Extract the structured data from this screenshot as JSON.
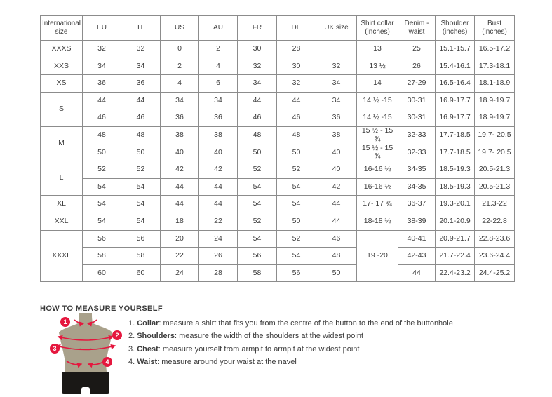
{
  "colors": {
    "accent_red": "#e5173e",
    "torso": "#a9a18b",
    "pants": "#1a1816",
    "table_border": "#8c8c8c",
    "text": "#3d3d3d"
  },
  "table": {
    "headers": [
      "International size",
      "EU",
      "IT",
      "US",
      "AU",
      "FR",
      "DE",
      "UK size",
      "Shirt collar (inches)",
      "Denim - waist",
      "Shoulder (inches)",
      "Bust (inches)"
    ],
    "rows": [
      [
        {
          "t": "XXXS"
        },
        {
          "t": "32"
        },
        {
          "t": "32"
        },
        {
          "t": "0"
        },
        {
          "t": "2"
        },
        {
          "t": "30"
        },
        {
          "t": "28"
        },
        {
          "t": ""
        },
        {
          "t": "13"
        },
        {
          "t": "25"
        },
        {
          "t": "15.1-15.7"
        },
        {
          "t": "16.5-17.2"
        }
      ],
      [
        {
          "t": "XXS"
        },
        {
          "t": "34"
        },
        {
          "t": "34"
        },
        {
          "t": "2"
        },
        {
          "t": "4"
        },
        {
          "t": "32"
        },
        {
          "t": "30"
        },
        {
          "t": "32"
        },
        {
          "t": "13 ½"
        },
        {
          "t": "26"
        },
        {
          "t": "15.4-16.1"
        },
        {
          "t": "17.3-18.1"
        }
      ],
      [
        {
          "t": "XS"
        },
        {
          "t": "36"
        },
        {
          "t": "36"
        },
        {
          "t": "4"
        },
        {
          "t": "6"
        },
        {
          "t": "34"
        },
        {
          "t": "32"
        },
        {
          "t": "34"
        },
        {
          "t": "14"
        },
        {
          "t": "27-29"
        },
        {
          "t": "16.5-16.4"
        },
        {
          "t": "18.1-18.9"
        }
      ],
      [
        {
          "t": "S",
          "rs": 2
        },
        {
          "t": "44"
        },
        {
          "t": "44"
        },
        {
          "t": "34"
        },
        {
          "t": "34"
        },
        {
          "t": "44"
        },
        {
          "t": "44"
        },
        {
          "t": "34"
        },
        {
          "t": "14 ½ -15"
        },
        {
          "t": "30-31"
        },
        {
          "t": "16.9-17.7"
        },
        {
          "t": "18.9-19.7"
        }
      ],
      [
        {
          "t": "46"
        },
        {
          "t": "46"
        },
        {
          "t": "36"
        },
        {
          "t": "36"
        },
        {
          "t": "46"
        },
        {
          "t": "46"
        },
        {
          "t": "36"
        },
        {
          "t": "14 ½ -15"
        },
        {
          "t": "30-31"
        },
        {
          "t": "16.9-17.7"
        },
        {
          "t": "18.9-19.7"
        }
      ],
      [
        {
          "t": "M",
          "rs": 2
        },
        {
          "t": "48"
        },
        {
          "t": "48"
        },
        {
          "t": "38"
        },
        {
          "t": "38"
        },
        {
          "t": "48"
        },
        {
          "t": "48"
        },
        {
          "t": "38"
        },
        {
          "t": "15 ½ - 15 ¾"
        },
        {
          "t": "32-33"
        },
        {
          "t": "17.7-18.5"
        },
        {
          "t": "19.7- 20.5"
        }
      ],
      [
        {
          "t": "50"
        },
        {
          "t": "50"
        },
        {
          "t": "40"
        },
        {
          "t": "40"
        },
        {
          "t": "50"
        },
        {
          "t": "50"
        },
        {
          "t": "40"
        },
        {
          "t": "15 ½ - 15 ¾"
        },
        {
          "t": "32-33"
        },
        {
          "t": "17.7-18.5"
        },
        {
          "t": "19.7- 20.5"
        }
      ],
      [
        {
          "t": "L",
          "rs": 2
        },
        {
          "t": "52"
        },
        {
          "t": "52"
        },
        {
          "t": "42"
        },
        {
          "t": "42"
        },
        {
          "t": "52"
        },
        {
          "t": "52"
        },
        {
          "t": "40"
        },
        {
          "t": "16-16 ½"
        },
        {
          "t": "34-35"
        },
        {
          "t": "18.5-19.3"
        },
        {
          "t": "20.5-21.3"
        }
      ],
      [
        {
          "t": "54"
        },
        {
          "t": "54"
        },
        {
          "t": "44"
        },
        {
          "t": "44"
        },
        {
          "t": "54"
        },
        {
          "t": "54"
        },
        {
          "t": "42"
        },
        {
          "t": "16-16 ½"
        },
        {
          "t": "34-35"
        },
        {
          "t": "18.5-19.3"
        },
        {
          "t": "20.5-21.3"
        }
      ],
      [
        {
          "t": "XL"
        },
        {
          "t": "54"
        },
        {
          "t": "54"
        },
        {
          "t": "44"
        },
        {
          "t": "44"
        },
        {
          "t": "54"
        },
        {
          "t": "54"
        },
        {
          "t": "44"
        },
        {
          "t": "17- 17 ¾"
        },
        {
          "t": "36-37"
        },
        {
          "t": "19.3-20.1"
        },
        {
          "t": "21.3-22"
        }
      ],
      [
        {
          "t": "XXL"
        },
        {
          "t": "54"
        },
        {
          "t": "54"
        },
        {
          "t": "18"
        },
        {
          "t": "22"
        },
        {
          "t": "52"
        },
        {
          "t": "50"
        },
        {
          "t": "44"
        },
        {
          "t": "18-18 ½"
        },
        {
          "t": "38-39"
        },
        {
          "t": "20.1-20.9"
        },
        {
          "t": "22-22.8"
        }
      ],
      [
        {
          "t": "XXXL",
          "rs": 3
        },
        {
          "t": "56"
        },
        {
          "t": "56"
        },
        {
          "t": "20"
        },
        {
          "t": "24"
        },
        {
          "t": "54"
        },
        {
          "t": "52"
        },
        {
          "t": "46"
        },
        {
          "t": "19 -20",
          "rs": 3
        },
        {
          "t": "40-41"
        },
        {
          "t": "20.9-21.7"
        },
        {
          "t": "22.8-23.6"
        }
      ],
      [
        {
          "t": "58"
        },
        {
          "t": "58"
        },
        {
          "t": "22"
        },
        {
          "t": "26"
        },
        {
          "t": "56"
        },
        {
          "t": "54"
        },
        {
          "t": "48"
        },
        {
          "t": "42-43"
        },
        {
          "t": "21.7-22.4"
        },
        {
          "t": "23.6-24.4"
        }
      ],
      [
        {
          "t": "60"
        },
        {
          "t": "60"
        },
        {
          "t": "24"
        },
        {
          "t": "28"
        },
        {
          "t": "58"
        },
        {
          "t": "56"
        },
        {
          "t": "50"
        },
        {
          "t": "44"
        },
        {
          "t": "22.4-23.2"
        },
        {
          "t": "24.4-25.2"
        }
      ]
    ]
  },
  "measure": {
    "title": "HOW TO MEASURE YOURSELF",
    "badges": [
      "1",
      "2",
      "3",
      "4"
    ],
    "instructions": [
      {
        "num": "1.",
        "term": "Collar",
        "rest": ": measure a shirt that fits you from the centre of the button to the end of the buttonhole"
      },
      {
        "num": "2.",
        "term": "Shoulders",
        "rest": ": measure the width of the shoulders at the widest point"
      },
      {
        "num": "3.",
        "term": "Chest",
        "rest": ": measure yourself from armpit to armpit at the widest point"
      },
      {
        "num": "4.",
        "term": "Waist",
        "rest": ": measure around your waist at the navel"
      }
    ]
  }
}
